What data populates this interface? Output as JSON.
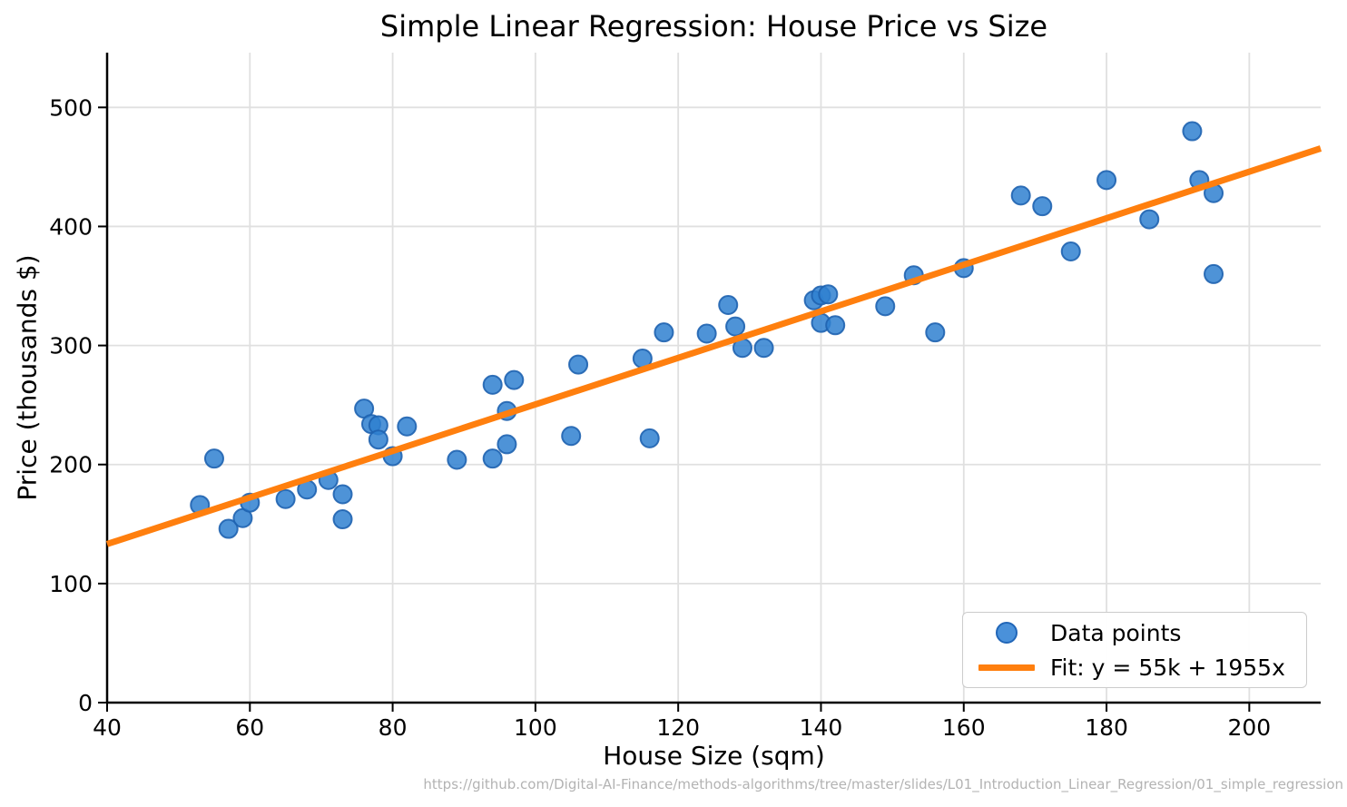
{
  "title": "Simple Linear Regression: House Price vs Size",
  "footer": {
    "url": "https://github.com/Digital-AI-Finance/methods-algorithms/tree/master/slides/L01_Introduction_Linear_Regression/01_simple_regression"
  },
  "colors": {
    "point_fill": "#2f80d0",
    "point_edge": "#1f63b0",
    "fit_line": "#ff7f0e",
    "grid": "#e0e0e0",
    "spine": "#000000",
    "tick_text": "#000000",
    "url_text": "#b3b3b3",
    "legend_border": "#cccccc"
  },
  "legend": {
    "position": "lower right",
    "items": [
      {
        "label": "Data points",
        "marker": "dot"
      },
      {
        "label": "Fit: y = 55k + 1955x",
        "marker": "line"
      }
    ]
  },
  "chart_data": {
    "type": "scatter",
    "title": "Simple Linear Regression: House Price vs Size",
    "xlabel": "House Size (sqm)",
    "ylabel": "Price (thousands $)",
    "xlim": [
      40,
      210
    ],
    "ylim": [
      0,
      546
    ],
    "xticks": [
      40,
      60,
      80,
      100,
      120,
      140,
      160,
      180,
      200
    ],
    "yticks": [
      0,
      100,
      200,
      300,
      400,
      500
    ],
    "grid": true,
    "series": [
      {
        "name": "Data points",
        "type": "scatter",
        "points": [
          [
            53,
            166
          ],
          [
            55,
            205
          ],
          [
            57,
            146
          ],
          [
            59,
            155
          ],
          [
            60,
            168
          ],
          [
            65,
            171
          ],
          [
            68,
            179
          ],
          [
            71,
            187
          ],
          [
            73,
            175
          ],
          [
            73,
            154
          ],
          [
            76,
            247
          ],
          [
            77,
            234
          ],
          [
            78,
            233
          ],
          [
            78,
            221
          ],
          [
            80,
            207
          ],
          [
            82,
            232
          ],
          [
            89,
            204
          ],
          [
            94,
            267
          ],
          [
            94,
            205
          ],
          [
            96,
            245
          ],
          [
            96,
            217
          ],
          [
            97,
            271
          ],
          [
            105,
            224
          ],
          [
            106,
            284
          ],
          [
            115,
            289
          ],
          [
            116,
            222
          ],
          [
            118,
            311
          ],
          [
            124,
            310
          ],
          [
            127,
            334
          ],
          [
            128,
            316
          ],
          [
            129,
            298
          ],
          [
            132,
            298
          ],
          [
            139,
            338
          ],
          [
            140,
            342
          ],
          [
            141,
            343
          ],
          [
            140,
            319
          ],
          [
            142,
            317
          ],
          [
            149,
            333
          ],
          [
            153,
            359
          ],
          [
            156,
            311
          ],
          [
            160,
            365
          ],
          [
            168,
            426
          ],
          [
            171,
            417
          ],
          [
            175,
            379
          ],
          [
            180,
            439
          ],
          [
            186,
            406
          ],
          [
            192,
            480
          ],
          [
            193,
            439
          ],
          [
            195,
            428
          ],
          [
            195,
            360
          ]
        ]
      },
      {
        "name": "Fit: y = 55k + 1955x",
        "type": "line",
        "intercept_k": 55,
        "slope_per_sqm": 1.955,
        "x_range": [
          40,
          210
        ]
      }
    ]
  }
}
